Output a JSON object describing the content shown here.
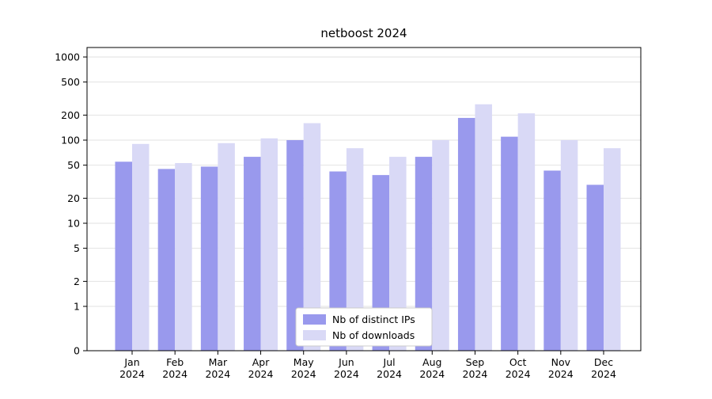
{
  "chart_data": {
    "type": "bar",
    "title": "netboost 2024",
    "scale": "symlog",
    "grid": true,
    "categories": [
      "Jan",
      "Feb",
      "Mar",
      "Apr",
      "May",
      "Jun",
      "Jul",
      "Aug",
      "Sep",
      "Oct",
      "Nov",
      "Dec"
    ],
    "year": "2024",
    "series": [
      {
        "name": "Nb of distinct IPs",
        "color": "#9999ed",
        "values": [
          55,
          45,
          48,
          63,
          100,
          42,
          38,
          63,
          185,
          110,
          43,
          29
        ]
      },
      {
        "name": "Nb of downloads",
        "color": "#d9d9f6",
        "values": [
          90,
          53,
          92,
          105,
          160,
          80,
          63,
          100,
          270,
          210,
          100,
          80
        ]
      }
    ],
    "yticks": [
      0,
      1,
      2,
      5,
      10,
      20,
      50,
      100,
      200,
      500,
      1000
    ],
    "ylim": [
      0,
      1300
    ],
    "xlabel": "",
    "ylabel": "",
    "legend_position": "lower center",
    "colors": {
      "grid": "#e2e2e2",
      "axis": "#000000",
      "legend_border": "#cccccc",
      "background": "#ffffff"
    }
  }
}
